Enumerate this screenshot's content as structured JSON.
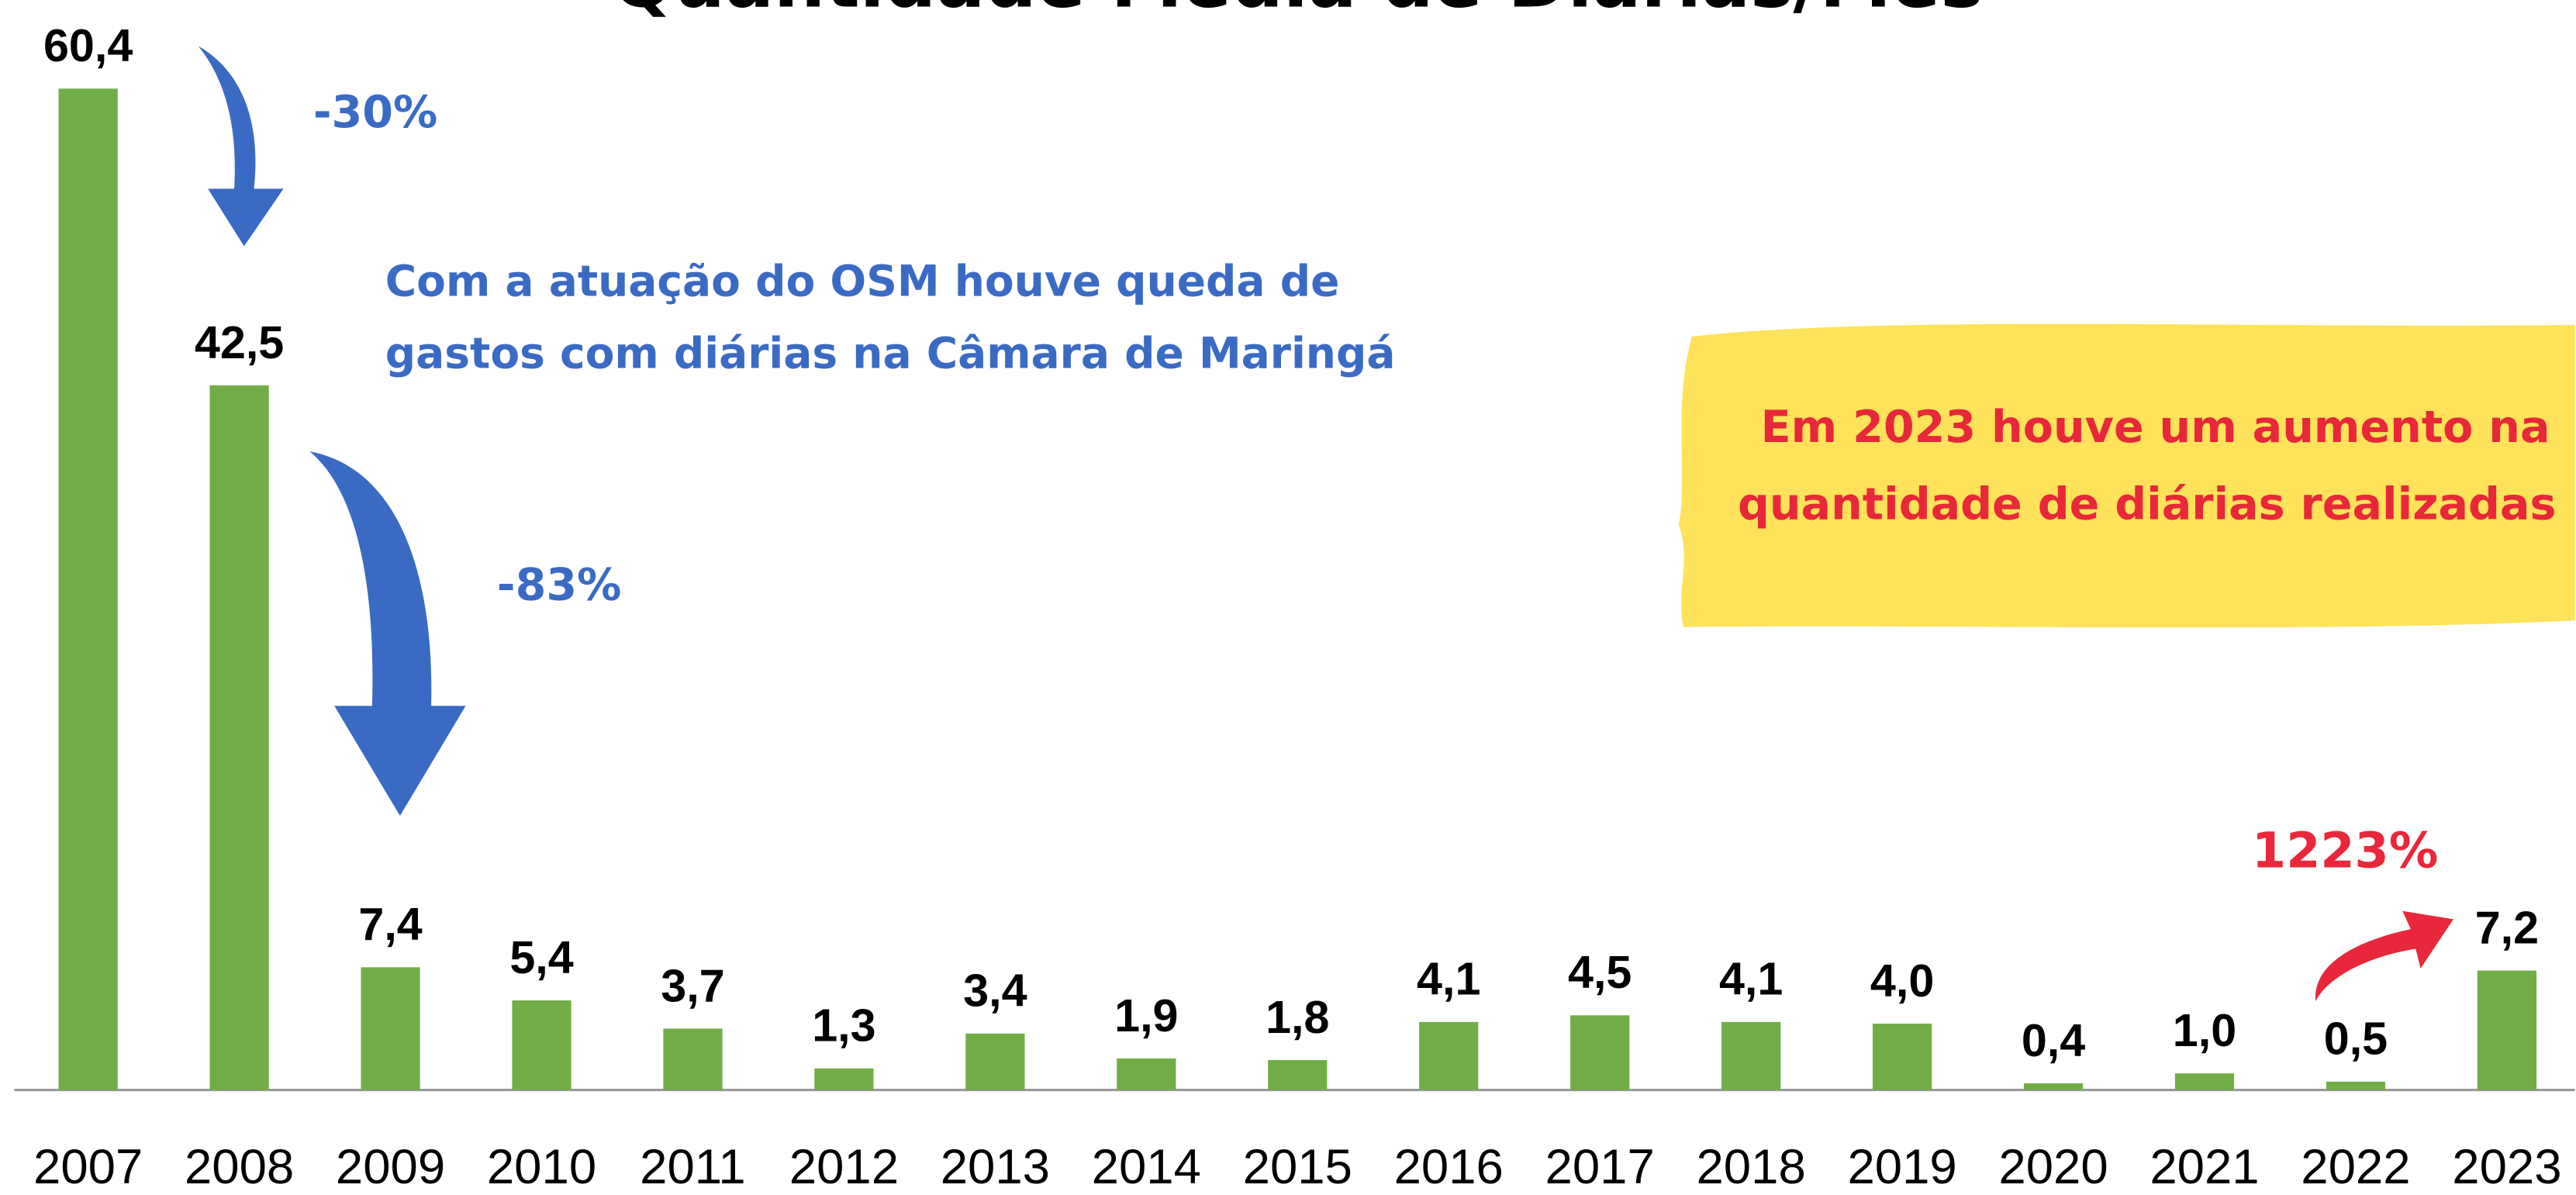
{
  "chart_data": {
    "type": "bar",
    "title": "Quantidade Média de Diárias/Mês",
    "categories": [
      "2007",
      "2008",
      "2009",
      "2010",
      "2011",
      "2012",
      "2013",
      "2014",
      "2015",
      "2016",
      "2017",
      "2018",
      "2019",
      "2020",
      "2021",
      "2022",
      "2023"
    ],
    "values": [
      60.4,
      42.5,
      7.4,
      5.4,
      3.7,
      1.3,
      3.4,
      1.9,
      1.8,
      4.1,
      4.5,
      4.1,
      4.0,
      0.4,
      1.0,
      0.5,
      7.2
    ],
    "value_labels": [
      "60,4",
      "42,5",
      "7,4",
      "5,4",
      "3,7",
      "1,3",
      "3,4",
      "1,9",
      "1,8",
      "4,1",
      "4,5",
      "4,1",
      "4,0",
      "0,4",
      "1,0",
      "0,5",
      "7,2"
    ],
    "color": "#70ad47",
    "annotations": {
      "drop_1": "-30%",
      "drop_2": "-83%",
      "note_lines": [
        "Com a atuação do OSM houve queda de",
        "gastos com diárias na Câmara de Maringá"
      ],
      "rise": "1223%",
      "highlight_lines": [
        "Em 2023 houve um aumento na",
        "quantidade de diárias realizadas"
      ]
    }
  }
}
